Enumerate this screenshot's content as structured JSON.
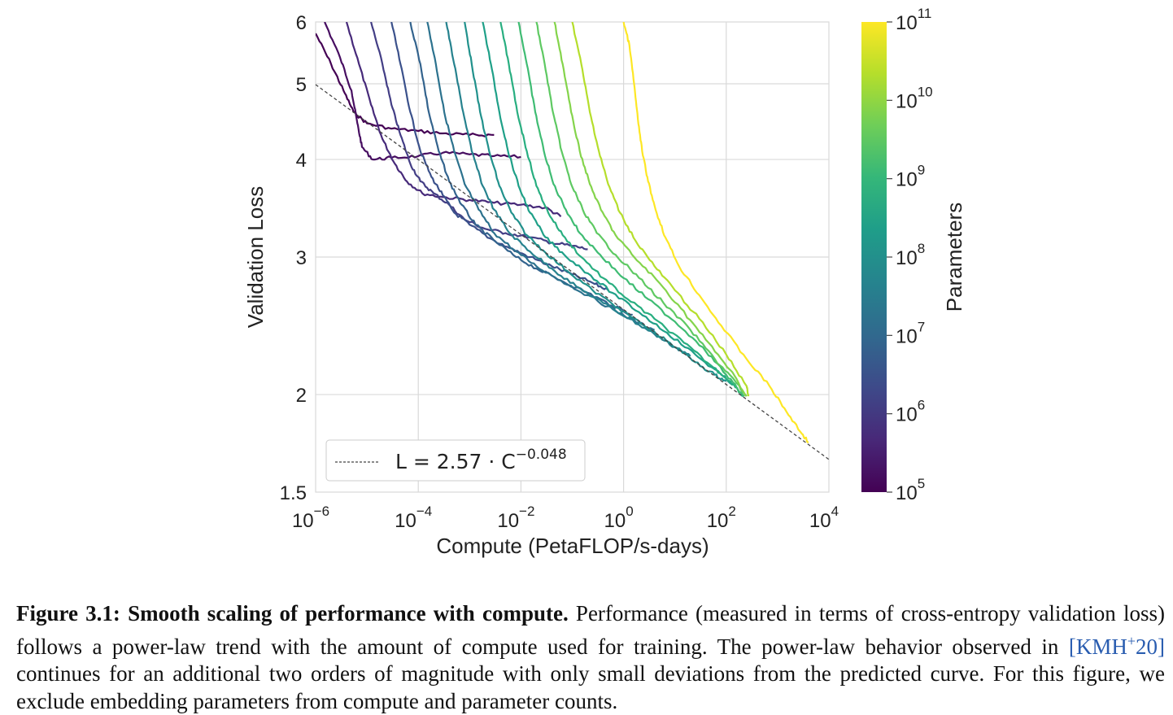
{
  "chart_data": {
    "type": "line",
    "xlabel": "Compute (PetaFLOP/s-days)",
    "ylabel": "Validation Loss",
    "x_scale": "log",
    "y_scale": "log",
    "xlim": [
      1e-06,
      10000.0
    ],
    "ylim": [
      1.5,
      6
    ],
    "x_ticks": [
      {
        "base": "10",
        "exp": "−6",
        "value": 1e-06
      },
      {
        "base": "10",
        "exp": "−4",
        "value": 0.0001
      },
      {
        "base": "10",
        "exp": "−2",
        "value": 0.01
      },
      {
        "base": "10",
        "exp": "0",
        "value": 1
      },
      {
        "base": "10",
        "exp": "2",
        "value": 100
      },
      {
        "base": "10",
        "exp": "4",
        "value": 10000
      }
    ],
    "y_ticks": [
      {
        "label": "1.5",
        "value": 1.5
      },
      {
        "label": "2",
        "value": 2
      },
      {
        "label": "3",
        "value": 3
      },
      {
        "label": "4",
        "value": 4
      },
      {
        "label": "5",
        "value": 5
      },
      {
        "label": "6",
        "value": 6
      }
    ],
    "grid": true,
    "legend": {
      "placement": "lower-left",
      "entries": [
        {
          "style": "dashed",
          "color": "#444444",
          "text_main": "L = 2.57 · C",
          "text_exp": "−0.048"
        }
      ]
    },
    "trend": {
      "a": 2.57,
      "b": -0.048
    },
    "colorbar": {
      "label": "Parameters",
      "scale": "log",
      "range": [
        100000.0,
        100000000000.0
      ],
      "colormap": "viridis",
      "ticks": [
        {
          "base": "10",
          "exp": "5"
        },
        {
          "base": "10",
          "exp": "6"
        },
        {
          "base": "10",
          "exp": "7"
        },
        {
          "base": "10",
          "exp": "8"
        },
        {
          "base": "10",
          "exp": "9"
        },
        {
          "base": "10",
          "exp": "10"
        },
        {
          "base": "10",
          "exp": "11"
        }
      ]
    },
    "series": [
      {
        "params_log10": 5.05,
        "color": "#440154",
        "points": [
          [
            1e-06,
            5.8
          ],
          [
            2e-06,
            5.3
          ],
          [
            3.5e-06,
            4.9
          ],
          [
            5.5e-06,
            4.6
          ],
          [
            1e-05,
            4.45
          ],
          [
            3e-05,
            4.38
          ],
          [
            0.0001,
            4.35
          ],
          [
            0.0003,
            4.32
          ],
          [
            0.001,
            4.3
          ],
          [
            0.003,
            4.3
          ]
        ]
      },
      {
        "params_log10": 5.25,
        "color": "#470e61",
        "points": [
          [
            1.5e-06,
            6
          ],
          [
            3e-06,
            5.4
          ],
          [
            5e-06,
            4.9
          ],
          [
            6.5e-06,
            4.45
          ],
          [
            8e-06,
            4.15
          ],
          [
            1.3e-05,
            4.0
          ],
          [
            3e-05,
            4.02
          ],
          [
            0.0001,
            4.04
          ],
          [
            0.0003,
            4.08
          ],
          [
            0.001,
            4.06
          ],
          [
            0.003,
            4.04
          ],
          [
            0.01,
            4.03
          ]
        ]
      },
      {
        "params_log10": 5.5,
        "color": "#472a7a",
        "points": [
          [
            4e-06,
            6
          ],
          [
            7e-06,
            5.3
          ],
          [
            1.2e-05,
            4.7
          ],
          [
            2e-05,
            4.25
          ],
          [
            3.5e-05,
            3.95
          ],
          [
            6e-05,
            3.75
          ],
          [
            0.00012,
            3.62
          ],
          [
            0.0003,
            3.58
          ],
          [
            0.001,
            3.55
          ],
          [
            0.003,
            3.52
          ],
          [
            0.01,
            3.5
          ],
          [
            0.03,
            3.47
          ],
          [
            0.06,
            3.38
          ]
        ]
      },
      {
        "params_log10": 5.8,
        "color": "#433e85",
        "points": [
          [
            1.2e-05,
            6
          ],
          [
            2e-05,
            5.3
          ],
          [
            3e-05,
            4.7
          ],
          [
            4.5e-05,
            4.3
          ],
          [
            7e-05,
            3.95
          ],
          [
            0.00011,
            3.75
          ],
          [
            0.0002,
            3.62
          ],
          [
            0.0004,
            3.5
          ],
          [
            0.0008,
            3.35
          ],
          [
            0.002,
            3.26
          ],
          [
            0.005,
            3.22
          ],
          [
            0.015,
            3.18
          ],
          [
            0.04,
            3.13
          ],
          [
            0.1,
            3.1
          ],
          [
            0.2,
            3.07
          ]
        ]
      },
      {
        "params_log10": 6.1,
        "color": "#3b518b",
        "points": [
          [
            3e-05,
            6
          ],
          [
            4.5e-05,
            5.3
          ],
          [
            7e-05,
            4.6
          ],
          [
            0.00011,
            4.1
          ],
          [
            0.00018,
            3.8
          ],
          [
            0.0003,
            3.6
          ],
          [
            0.0005,
            3.42
          ],
          [
            0.001,
            3.3
          ],
          [
            0.0025,
            3.17
          ],
          [
            0.006,
            3.08
          ],
          [
            0.015,
            3.0
          ],
          [
            0.04,
            2.92
          ],
          [
            0.1,
            2.85
          ],
          [
            0.25,
            2.78
          ],
          [
            0.5,
            2.72
          ]
        ]
      },
      {
        "params_log10": 6.5,
        "color": "#33638d",
        "points": [
          [
            7e-05,
            6
          ],
          [
            0.00011,
            5.3
          ],
          [
            0.00016,
            4.6
          ],
          [
            0.00025,
            4.1
          ],
          [
            0.0004,
            3.75
          ],
          [
            0.0007,
            3.5
          ],
          [
            0.0013,
            3.3
          ],
          [
            0.003,
            3.15
          ],
          [
            0.008,
            3.0
          ],
          [
            0.02,
            2.9
          ],
          [
            0.06,
            2.8
          ],
          [
            0.2,
            2.7
          ],
          [
            0.6,
            2.6
          ],
          [
            1.5,
            2.53
          ]
        ]
      },
      {
        "params_log10": 6.9,
        "color": "#2c728e",
        "points": [
          [
            0.00015,
            6
          ],
          [
            0.00022,
            5.3
          ],
          [
            0.00032,
            4.6
          ],
          [
            0.0005,
            4.1
          ],
          [
            0.0008,
            3.72
          ],
          [
            0.0015,
            3.45
          ],
          [
            0.003,
            3.22
          ],
          [
            0.008,
            3.05
          ],
          [
            0.02,
            2.92
          ],
          [
            0.06,
            2.8
          ],
          [
            0.2,
            2.68
          ],
          [
            0.7,
            2.56
          ],
          [
            2,
            2.47
          ],
          [
            4,
            2.42
          ]
        ]
      },
      {
        "params_log10": 7.3,
        "color": "#26828e",
        "points": [
          [
            0.00035,
            6
          ],
          [
            0.0005,
            5.3
          ],
          [
            0.00075,
            4.6
          ],
          [
            0.0011,
            4.1
          ],
          [
            0.0018,
            3.7
          ],
          [
            0.003,
            3.45
          ],
          [
            0.006,
            3.22
          ],
          [
            0.015,
            3.05
          ],
          [
            0.04,
            2.9
          ],
          [
            0.12,
            2.75
          ],
          [
            0.4,
            2.62
          ],
          [
            1.3,
            2.5
          ],
          [
            4,
            2.39
          ],
          [
            10,
            2.3
          ],
          [
            20,
            2.24
          ]
        ]
      },
      {
        "params_log10": 7.7,
        "color": "#21918c",
        "points": [
          [
            0.0008,
            6
          ],
          [
            0.0011,
            5.3
          ],
          [
            0.0016,
            4.6
          ],
          [
            0.0024,
            4.1
          ],
          [
            0.0038,
            3.7
          ],
          [
            0.0065,
            3.42
          ],
          [
            0.013,
            3.2
          ],
          [
            0.03,
            3.04
          ],
          [
            0.08,
            2.88
          ],
          [
            0.25,
            2.72
          ],
          [
            0.8,
            2.58
          ],
          [
            2.5,
            2.45
          ],
          [
            8,
            2.33
          ],
          [
            25,
            2.2
          ],
          [
            60,
            2.12
          ],
          [
            100,
            2.08
          ]
        ]
      },
      {
        "params_log10": 8.1,
        "color": "#1fa088",
        "points": [
          [
            0.0018,
            6
          ],
          [
            0.0026,
            5.3
          ],
          [
            0.0038,
            4.6
          ],
          [
            0.0056,
            4.1
          ],
          [
            0.009,
            3.7
          ],
          [
            0.015,
            3.42
          ],
          [
            0.03,
            3.18
          ],
          [
            0.07,
            3.02
          ],
          [
            0.2,
            2.86
          ],
          [
            0.6,
            2.7
          ],
          [
            2,
            2.55
          ],
          [
            7,
            2.4
          ],
          [
            25,
            2.25
          ],
          [
            80,
            2.12
          ],
          [
            150,
            2.05
          ]
        ]
      },
      {
        "params_log10": 8.5,
        "color": "#28ae80",
        "points": [
          [
            0.004,
            6
          ],
          [
            0.0058,
            5.3
          ],
          [
            0.0085,
            4.6
          ],
          [
            0.013,
            4.1
          ],
          [
            0.02,
            3.7
          ],
          [
            0.034,
            3.42
          ],
          [
            0.065,
            3.2
          ],
          [
            0.15,
            3.0
          ],
          [
            0.4,
            2.82
          ],
          [
            1.2,
            2.65
          ],
          [
            4,
            2.5
          ],
          [
            15,
            2.33
          ],
          [
            50,
            2.18
          ],
          [
            120,
            2.08
          ],
          [
            220,
            1.99
          ]
        ]
      },
      {
        "params_log10": 8.9,
        "color": "#3fbc73",
        "points": [
          [
            0.009,
            6
          ],
          [
            0.013,
            5.3
          ],
          [
            0.019,
            4.6
          ],
          [
            0.028,
            4.1
          ],
          [
            0.043,
            3.72
          ],
          [
            0.075,
            3.45
          ],
          [
            0.14,
            3.22
          ],
          [
            0.35,
            3.02
          ],
          [
            1,
            2.82
          ],
          [
            3,
            2.65
          ],
          [
            10,
            2.48
          ],
          [
            35,
            2.3
          ],
          [
            100,
            2.12
          ],
          [
            220,
            1.99
          ]
        ]
      },
      {
        "params_log10": 9.3,
        "color": "#5ec962",
        "points": [
          [
            0.02,
            6
          ],
          [
            0.029,
            5.3
          ],
          [
            0.042,
            4.6
          ],
          [
            0.062,
            4.1
          ],
          [
            0.095,
            3.72
          ],
          [
            0.16,
            3.45
          ],
          [
            0.3,
            3.22
          ],
          [
            0.7,
            3.02
          ],
          [
            2,
            2.82
          ],
          [
            6,
            2.62
          ],
          [
            20,
            2.42
          ],
          [
            60,
            2.22
          ],
          [
            150,
            2.08
          ],
          [
            240,
            1.99
          ]
        ]
      },
      {
        "params_log10": 9.7,
        "color": "#84d44b",
        "points": [
          [
            0.045,
            6
          ],
          [
            0.065,
            5.3
          ],
          [
            0.095,
            4.6
          ],
          [
            0.14,
            4.1
          ],
          [
            0.22,
            3.72
          ],
          [
            0.36,
            3.45
          ],
          [
            0.7,
            3.2
          ],
          [
            1.6,
            3.0
          ],
          [
            4.5,
            2.8
          ],
          [
            13,
            2.58
          ],
          [
            40,
            2.35
          ],
          [
            120,
            2.15
          ],
          [
            250,
            1.99
          ]
        ]
      },
      {
        "params_log10": 10.2,
        "color": "#b5de2b",
        "points": [
          [
            0.1,
            6
          ],
          [
            0.15,
            5.3
          ],
          [
            0.22,
            4.6
          ],
          [
            0.33,
            4.1
          ],
          [
            0.5,
            3.72
          ],
          [
            0.85,
            3.42
          ],
          [
            1.7,
            3.15
          ],
          [
            4,
            2.92
          ],
          [
            10,
            2.72
          ],
          [
            30,
            2.5
          ],
          [
            100,
            2.25
          ],
          [
            250,
            2.05
          ],
          [
            270,
            1.99
          ]
        ]
      },
      {
        "params_log10": 11.2,
        "color": "#fde725",
        "points": [
          [
            1,
            6
          ],
          [
            1.3,
            5.6
          ],
          [
            1.6,
            5.0
          ],
          [
            1.9,
            4.5
          ],
          [
            2.3,
            4.1
          ],
          [
            3,
            3.75
          ],
          [
            4.2,
            3.45
          ],
          [
            6.5,
            3.18
          ],
          [
            12,
            2.92
          ],
          [
            30,
            2.68
          ],
          [
            80,
            2.45
          ],
          [
            250,
            2.22
          ],
          [
            700,
            2.05
          ],
          [
            1500,
            1.9
          ],
          [
            3000,
            1.78
          ],
          [
            4000,
            1.74
          ]
        ]
      }
    ]
  },
  "caption": {
    "label": "Figure 3.1:",
    "title": "Smooth scaling of performance with compute.",
    "text_before_cite": "Performance (measured in terms of cross-entropy validation loss) follows a power-law trend with the amount of compute used for training. The power-law behavior observed in",
    "cite_text": "KMH",
    "cite_sup": "+",
    "cite_year": "20",
    "text_after_cite": "continues for an additional two orders of magnitude with only small deviations from the predicted curve. For this figure, we exclude embedding parameters from compute and parameter counts."
  }
}
